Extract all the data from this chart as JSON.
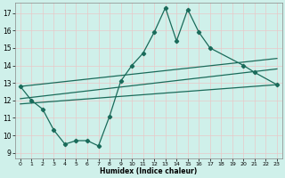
{
  "title": "",
  "xlabel": "Humidex (Indice chaleur)",
  "bg_color": "#cff0ea",
  "grid_color": "#e8c8c8",
  "line_color": "#1a6b5a",
  "xlim": [
    -0.5,
    23.5
  ],
  "ylim": [
    8.7,
    17.6
  ],
  "yticks": [
    9,
    10,
    11,
    12,
    13,
    14,
    15,
    16,
    17
  ],
  "xticks": [
    0,
    1,
    2,
    3,
    4,
    5,
    6,
    7,
    8,
    9,
    10,
    11,
    12,
    13,
    14,
    15,
    16,
    17,
    18,
    19,
    20,
    21,
    22,
    23
  ],
  "main_x": [
    0,
    1,
    2,
    3,
    4,
    5,
    6,
    7,
    8,
    9,
    10,
    11,
    12,
    13,
    14,
    15,
    16,
    17,
    20,
    21,
    23
  ],
  "main_y": [
    12.8,
    12.0,
    11.5,
    10.3,
    9.5,
    9.7,
    9.7,
    9.4,
    11.1,
    13.1,
    14.0,
    14.7,
    15.9,
    17.3,
    15.4,
    17.2,
    15.9,
    15.0,
    14.0,
    13.6,
    12.9
  ],
  "upper_line_x": [
    0,
    23
  ],
  "upper_line_y": [
    12.8,
    14.4
  ],
  "mid_line_x": [
    0,
    23
  ],
  "mid_line_y": [
    12.1,
    13.8
  ],
  "lower_line_x": [
    0,
    23
  ],
  "lower_line_y": [
    11.8,
    12.9
  ]
}
